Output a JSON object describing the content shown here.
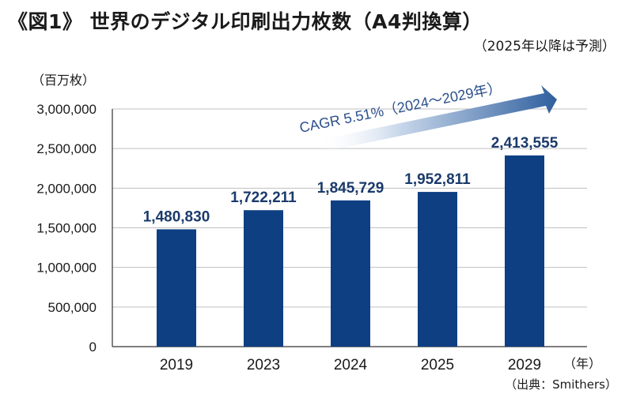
{
  "header": {
    "title": "《図1》 世界のデジタル印刷出力枚数（A4判換算）",
    "subtitle": "（2025年以降は予測）"
  },
  "footer": {
    "source": "（出典：Smithers）"
  },
  "chart_data": {
    "type": "bar",
    "title": "世界のデジタル印刷出力枚数（A4判換算）",
    "ylabel": "（百万枚）",
    "xlabel": "（年）",
    "categories": [
      "2019",
      "2023",
      "2024",
      "2025",
      "2029"
    ],
    "values": [
      1480830,
      1722211,
      1845729,
      1952811,
      2413555
    ],
    "value_labels": [
      "1,480,830",
      "1,722,211",
      "1,845,729",
      "1,952,811",
      "2,413,555"
    ],
    "ylim": [
      0,
      3000000
    ],
    "yticks": [
      0,
      500000,
      1000000,
      1500000,
      2000000,
      2500000,
      3000000
    ],
    "ytick_labels": [
      "0",
      "500,000",
      "1,000,000",
      "1,500,000",
      "2,000,000",
      "2,500,000",
      "3,000,000"
    ],
    "grid": true,
    "annotation": "CAGR 5.51%（2024～2029年）",
    "colors": {
      "bar": "#0d3f82",
      "grid": "#bfbfbf",
      "axis": "#333333",
      "arrow": "#2f5f9e"
    }
  }
}
